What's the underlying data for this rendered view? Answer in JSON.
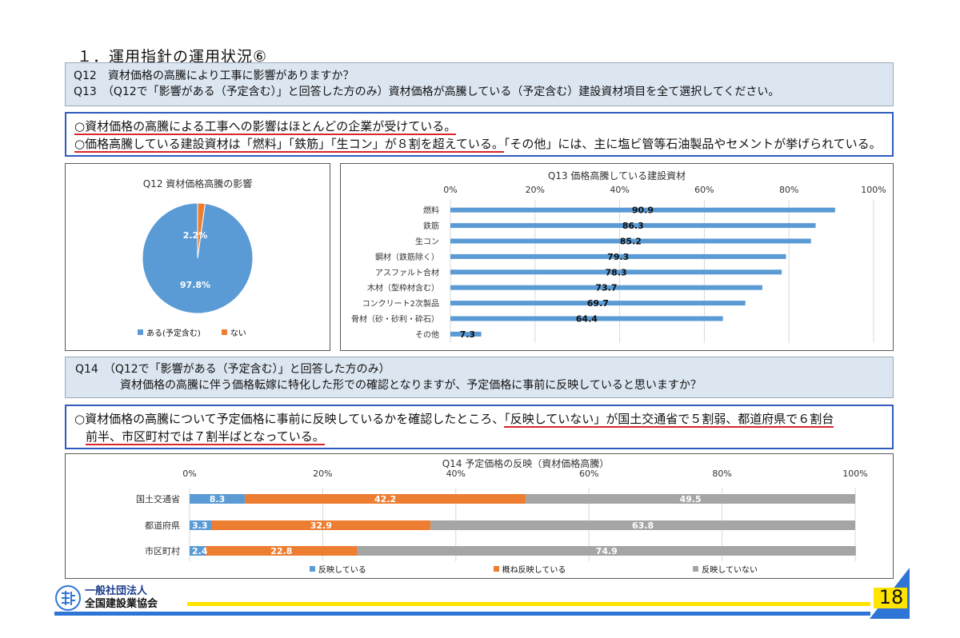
{
  "page_title": "１．運用指針の運用状況⑥",
  "q12_q13_box": {
    "q12": "Q12　資材価格の高騰により工事に影響がありますか？",
    "q13": "Q13　（Q12で「影響がある（予定含む）」と回答した方のみ）資材価格が高騰している（予定含む）建設資材項目を全て選択してください。"
  },
  "findings_box_1": {
    "line1_underlined": "○資材価格の高騰による工事への影響はほとんどの企業が受けている。",
    "line2_underlined": "○価格高騰している建設資材は「燃料」「鉄筋」「生コン」が８割を超えている。",
    "line2_rest": "「その他」には、主に塩ビ管等石油製品やセメントが挙げられている。"
  },
  "q14_box": {
    "line1": "Q14　（Q12で「影響がある（予定含む）」と回答した方のみ）",
    "line2": "資材価格の高騰に伴う価格転嫁に特化した形での確認となりますが、予定価格に事前に反映していると思いますか？"
  },
  "findings_box_2": {
    "text_start": "○資材価格の高騰について予定価格に事前に反映しているかを確認したところ、",
    "text_underlined_1": "「反映していない」が国土交通省で５割弱、都道府県で６割台",
    "text_underlined_2": "前半、市区町村では７割半ばとなっている。"
  },
  "chart_data": [
    {
      "type": "pie",
      "title": "Q12 資材価格高騰の影響",
      "slices": [
        {
          "label": "ある(予定含む)",
          "value": 97.8,
          "display": "97.8%",
          "color": "#5b9bd5"
        },
        {
          "label": "ない",
          "value": 2.2,
          "display": "2.2%",
          "color": "#ed7d31"
        }
      ],
      "legend": "bottom"
    },
    {
      "type": "bar",
      "orientation": "horizontal",
      "title": "Q13 価格高騰している建設資材",
      "categories": [
        "燃料",
        "鉄筋",
        "生コン",
        "鋼材（鉄筋除く）",
        "アスファルト合材",
        "木材（型枠材含む）",
        "コンクリート2次製品",
        "骨材（砂・砂利・砕石）",
        "その他"
      ],
      "values": [
        90.9,
        86.3,
        85.2,
        79.3,
        78.3,
        73.7,
        69.7,
        64.4,
        7.3
      ],
      "value_labels": [
        "90.9",
        "86.3",
        "85.2",
        "79.3",
        "78.3",
        "73.7",
        "69.7",
        "64.4",
        "7.3"
      ],
      "xlim": [
        0,
        100
      ],
      "ticks": [
        "0%",
        "20%",
        "40%",
        "60%",
        "80%",
        "100%"
      ],
      "tick_values": [
        0,
        20,
        40,
        60,
        80,
        100
      ],
      "grid": true,
      "color": "#5b9bd5"
    },
    {
      "type": "bar",
      "orientation": "horizontal",
      "stacked": true,
      "title": "Q14 予定価格の反映（資材価格高騰）",
      "categories": [
        "国土交通省",
        "都道府県",
        "市区町村"
      ],
      "series": [
        {
          "name": "反映している",
          "color": "#5b9bd5",
          "values": [
            8.3,
            3.3,
            2.4
          ],
          "labels": [
            "8.3",
            "3.3",
            "2.4"
          ]
        },
        {
          "name": "概ね反映している",
          "color": "#ed7d31",
          "values": [
            42.2,
            32.9,
            22.8
          ],
          "labels": [
            "42.2",
            "32.9",
            "22.8"
          ]
        },
        {
          "name": "反映していない",
          "color": "#a5a5a5",
          "values": [
            49.5,
            63.8,
            74.9
          ],
          "labels": [
            "49.5",
            "63.8",
            "74.9"
          ]
        }
      ],
      "xlim": [
        0,
        100
      ],
      "ticks": [
        "0%",
        "20%",
        "40%",
        "60%",
        "80%",
        "100%"
      ],
      "tick_values": [
        0,
        20,
        40,
        60,
        80,
        100
      ],
      "grid": true,
      "legend": "bottom"
    }
  ],
  "footer": {
    "org_line1": "一般社団法人",
    "org_line2": "全国建設業協会",
    "page_number": "18",
    "accent_blue": "#2e75d6",
    "accent_yellow": "#ffe400"
  }
}
